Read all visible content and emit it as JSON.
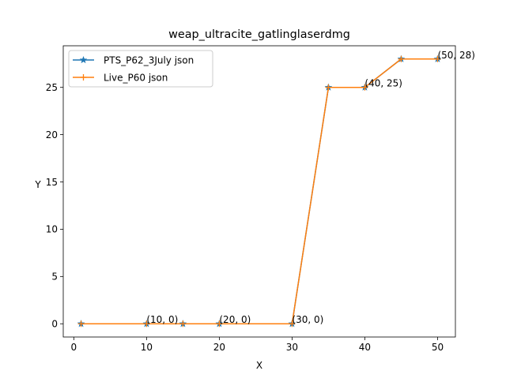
{
  "chart_data": {
    "type": "line",
    "title": "weap_ultracite_gatlinglaserdmg",
    "xlabel": "X",
    "ylabel": "Y",
    "xlim": [
      -1.45,
      52.45
    ],
    "ylim": [
      -1.4,
      29.4
    ],
    "xticks": [
      0,
      10,
      20,
      30,
      40,
      50
    ],
    "yticks": [
      0,
      5,
      10,
      15,
      20,
      25
    ],
    "grid": false,
    "legend_position": "upper-left",
    "series": [
      {
        "name": "PTS_P62_3July json",
        "color": "#1f77b4",
        "marker": "star",
        "x": [
          1,
          10,
          15,
          20,
          30,
          35,
          40,
          45,
          50
        ],
        "y": [
          0,
          0,
          0,
          0,
          0,
          25,
          25,
          28,
          28
        ]
      },
      {
        "name": "Live_P60 json",
        "color": "#ff7f0e",
        "marker": "plus",
        "x": [
          1,
          10,
          15,
          20,
          30,
          35,
          40,
          45,
          50
        ],
        "y": [
          0,
          0,
          0,
          0,
          0,
          25,
          25,
          28,
          28
        ]
      }
    ],
    "annotations": [
      {
        "text": "(10, 0)",
        "x": 10,
        "y": 0
      },
      {
        "text": "(20, 0)",
        "x": 20,
        "y": 0
      },
      {
        "text": "(30, 0)",
        "x": 30,
        "y": 0
      },
      {
        "text": "(40, 25)",
        "x": 40,
        "y": 25
      },
      {
        "text": "(50, 28)",
        "x": 50,
        "y": 28
      }
    ]
  }
}
